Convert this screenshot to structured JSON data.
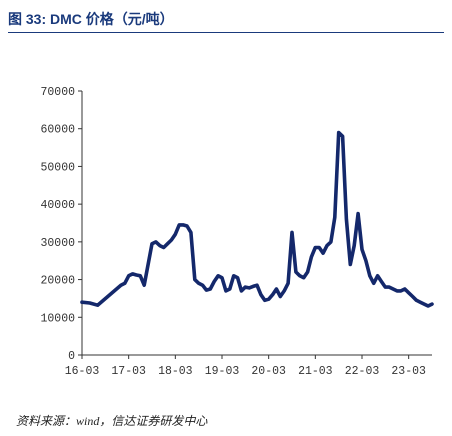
{
  "figure": {
    "title": "图 33:  DMC 价格（元/吨）",
    "source": "资料来源：wind，信达证券研发中心"
  },
  "chart_data": {
    "type": "line",
    "title": "DMC 价格（元/吨）",
    "xlabel": "",
    "ylabel": "",
    "ylim": [
      0,
      70000
    ],
    "xlim": [
      "2016-03",
      "2023-09"
    ],
    "yticks": [
      0,
      10000,
      20000,
      30000,
      40000,
      50000,
      60000,
      70000
    ],
    "ytick_labels": [
      "0",
      "10000",
      "20000",
      "30000",
      "40000",
      "50000",
      "60000",
      "70000"
    ],
    "xticks": [
      "2016-03",
      "2017-03",
      "2018-03",
      "2019-03",
      "2020-03",
      "2021-03",
      "2022-03",
      "2023-03"
    ],
    "xtick_labels": [
      "16-03",
      "17-03",
      "18-03",
      "19-03",
      "20-03",
      "21-03",
      "22-03",
      "23-03"
    ],
    "grid": false,
    "legend": "none",
    "line_color": "#14286b",
    "series": [
      {
        "x": [
          "2016-03",
          "2016-05",
          "2016-07",
          "2017-01",
          "2017-02",
          "2017-03",
          "2017-04",
          "2017-05",
          "2017-06",
          "2017-07",
          "2017-08",
          "2017-09",
          "2017-10",
          "2017-11",
          "2017-12",
          "2018-01",
          "2018-02",
          "2018-03",
          "2018-04",
          "2018-05",
          "2018-06",
          "2018-07",
          "2018-08",
          "2018-09",
          "2018-10",
          "2018-11",
          "2018-12",
          "2019-01",
          "2019-02",
          "2019-03",
          "2019-04",
          "2019-05",
          "2019-06",
          "2019-07",
          "2019-08",
          "2019-09",
          "2019-10",
          "2019-11",
          "2019-12",
          "2020-01",
          "2020-02",
          "2020-03",
          "2020-04",
          "2020-05",
          "2020-06",
          "2020-07",
          "2020-08",
          "2020-09",
          "2020-10",
          "2020-11",
          "2020-12",
          "2021-01",
          "2021-02",
          "2021-03",
          "2021-04",
          "2021-05",
          "2021-06",
          "2021-07",
          "2021-08",
          "2021-09",
          "2021-10",
          "2021-11",
          "2021-12",
          "2022-01",
          "2022-02",
          "2022-03",
          "2022-04",
          "2022-05",
          "2022-06",
          "2022-07",
          "2022-08",
          "2022-09",
          "2022-10",
          "2022-11",
          "2022-12",
          "2023-01",
          "2023-02",
          "2023-03",
          "2023-04",
          "2023-05",
          "2023-06",
          "2023-07",
          "2023-08",
          "2023-09"
        ],
        "y": [
          14000,
          13800,
          13200,
          18500,
          19000,
          21000,
          21500,
          21200,
          21000,
          18500,
          24000,
          29500,
          30000,
          29000,
          28500,
          29500,
          30500,
          32000,
          34500,
          34500,
          34200,
          32500,
          20000,
          19000,
          18500,
          17200,
          17500,
          19500,
          21000,
          20500,
          17000,
          17500,
          21000,
          20500,
          17000,
          18000,
          17800,
          18200,
          18500,
          16000,
          14500,
          14800,
          16000,
          17500,
          15500,
          17000,
          19000,
          32500,
          22000,
          21000,
          20500,
          22000,
          26000,
          28500,
          28500,
          27000,
          29000,
          30000,
          36500,
          59000,
          58000,
          36000,
          24000,
          29000,
          37500,
          28000,
          25000,
          21000,
          19000,
          21000,
          19500,
          18000,
          18000,
          17500,
          17000,
          17000,
          17500,
          16500,
          15500,
          14500,
          14000,
          13500,
          13000,
          13500
        ]
      }
    ]
  }
}
